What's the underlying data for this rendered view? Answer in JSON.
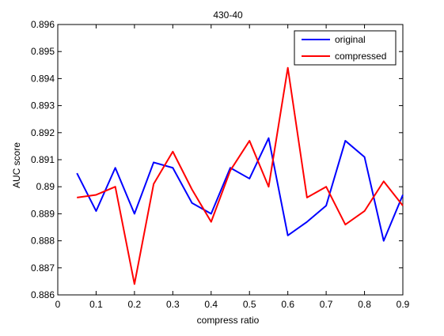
{
  "chart_data": {
    "type": "line",
    "title": "430-40",
    "xlabel": "compress ratio",
    "ylabel": "AUC score",
    "xlim": [
      0,
      0.9
    ],
    "ylim": [
      0.886,
      0.896
    ],
    "x_ticks": [
      "0",
      "0.1",
      "0.2",
      "0.3",
      "0.4",
      "0.5",
      "0.6",
      "0.7",
      "0.8",
      "0.9"
    ],
    "y_ticks": [
      "0.886",
      "0.887",
      "0.888",
      "0.889",
      "0.89",
      "0.891",
      "0.892",
      "0.893",
      "0.894",
      "0.895",
      "0.896"
    ],
    "grid": false,
    "legend_position": "top-right",
    "x": [
      0.05,
      0.1,
      0.15,
      0.2,
      0.25,
      0.3,
      0.35,
      0.4,
      0.45,
      0.5,
      0.55,
      0.6,
      0.65,
      0.7,
      0.75,
      0.8,
      0.85,
      0.9
    ],
    "series": [
      {
        "name": "original",
        "color": "#0000ff",
        "values": [
          0.8905,
          0.8891,
          0.8907,
          0.889,
          0.8909,
          0.8907,
          0.8894,
          0.889,
          0.8907,
          0.8903,
          0.8918,
          0.8882,
          0.8887,
          0.8893,
          0.8917,
          0.8911,
          0.888,
          0.8897
        ]
      },
      {
        "name": "compressed",
        "color": "#ff0000",
        "values": [
          0.8896,
          0.8897,
          0.89,
          0.8864,
          0.8901,
          0.8913,
          0.8899,
          0.8887,
          0.8906,
          0.8917,
          0.89,
          0.8944,
          0.8896,
          0.89,
          0.8886,
          0.8891,
          0.8902,
          0.8893
        ]
      }
    ]
  }
}
